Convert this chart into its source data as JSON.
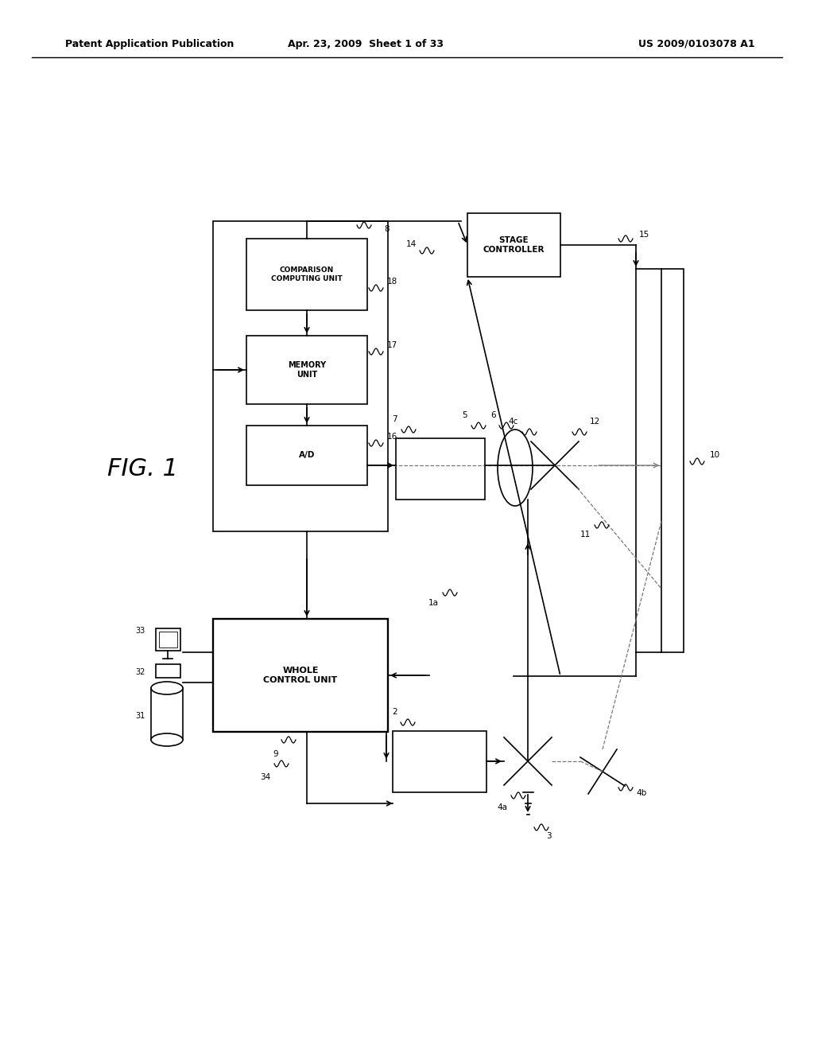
{
  "bg_color": "#ffffff",
  "header_left": "Patent Application Publication",
  "header_mid": "Apr. 23, 2009  Sheet 1 of 33",
  "header_right": "US 2009/0103078 A1",
  "text_color": "#000000",
  "line_color": "#000000",
  "lw": 1.2
}
